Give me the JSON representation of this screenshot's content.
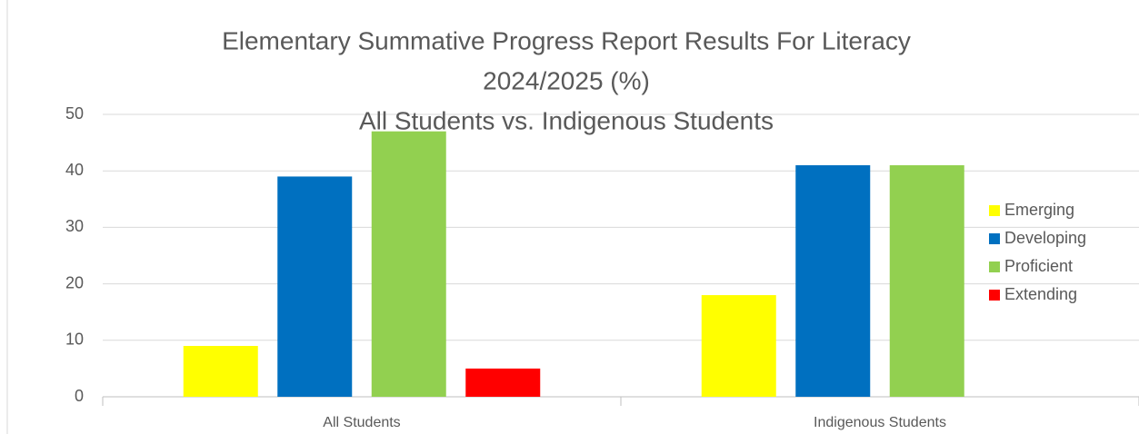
{
  "chart_data": {
    "type": "bar",
    "title": [
      "Elementary Summative Progress Report Results For Literacy",
      "2024/2025 (%)"
    ],
    "subtitle": "All Students vs. Indigenous Students",
    "categories": [
      "All Students",
      "Indigenous Students"
    ],
    "series": [
      {
        "name": "Emerging",
        "color": "#ffff00",
        "values": [
          9,
          18
        ]
      },
      {
        "name": "Developing",
        "color": "#0070c0",
        "values": [
          39,
          41
        ]
      },
      {
        "name": "Proficient",
        "color": "#92d050",
        "values": [
          47,
          41
        ]
      },
      {
        "name": "Extending",
        "color": "#ff0000",
        "values": [
          5,
          0
        ]
      }
    ],
    "ylim": [
      0,
      50
    ],
    "yticks": [
      0,
      10,
      20,
      30,
      40,
      50
    ],
    "grid": true,
    "legend": "right"
  }
}
